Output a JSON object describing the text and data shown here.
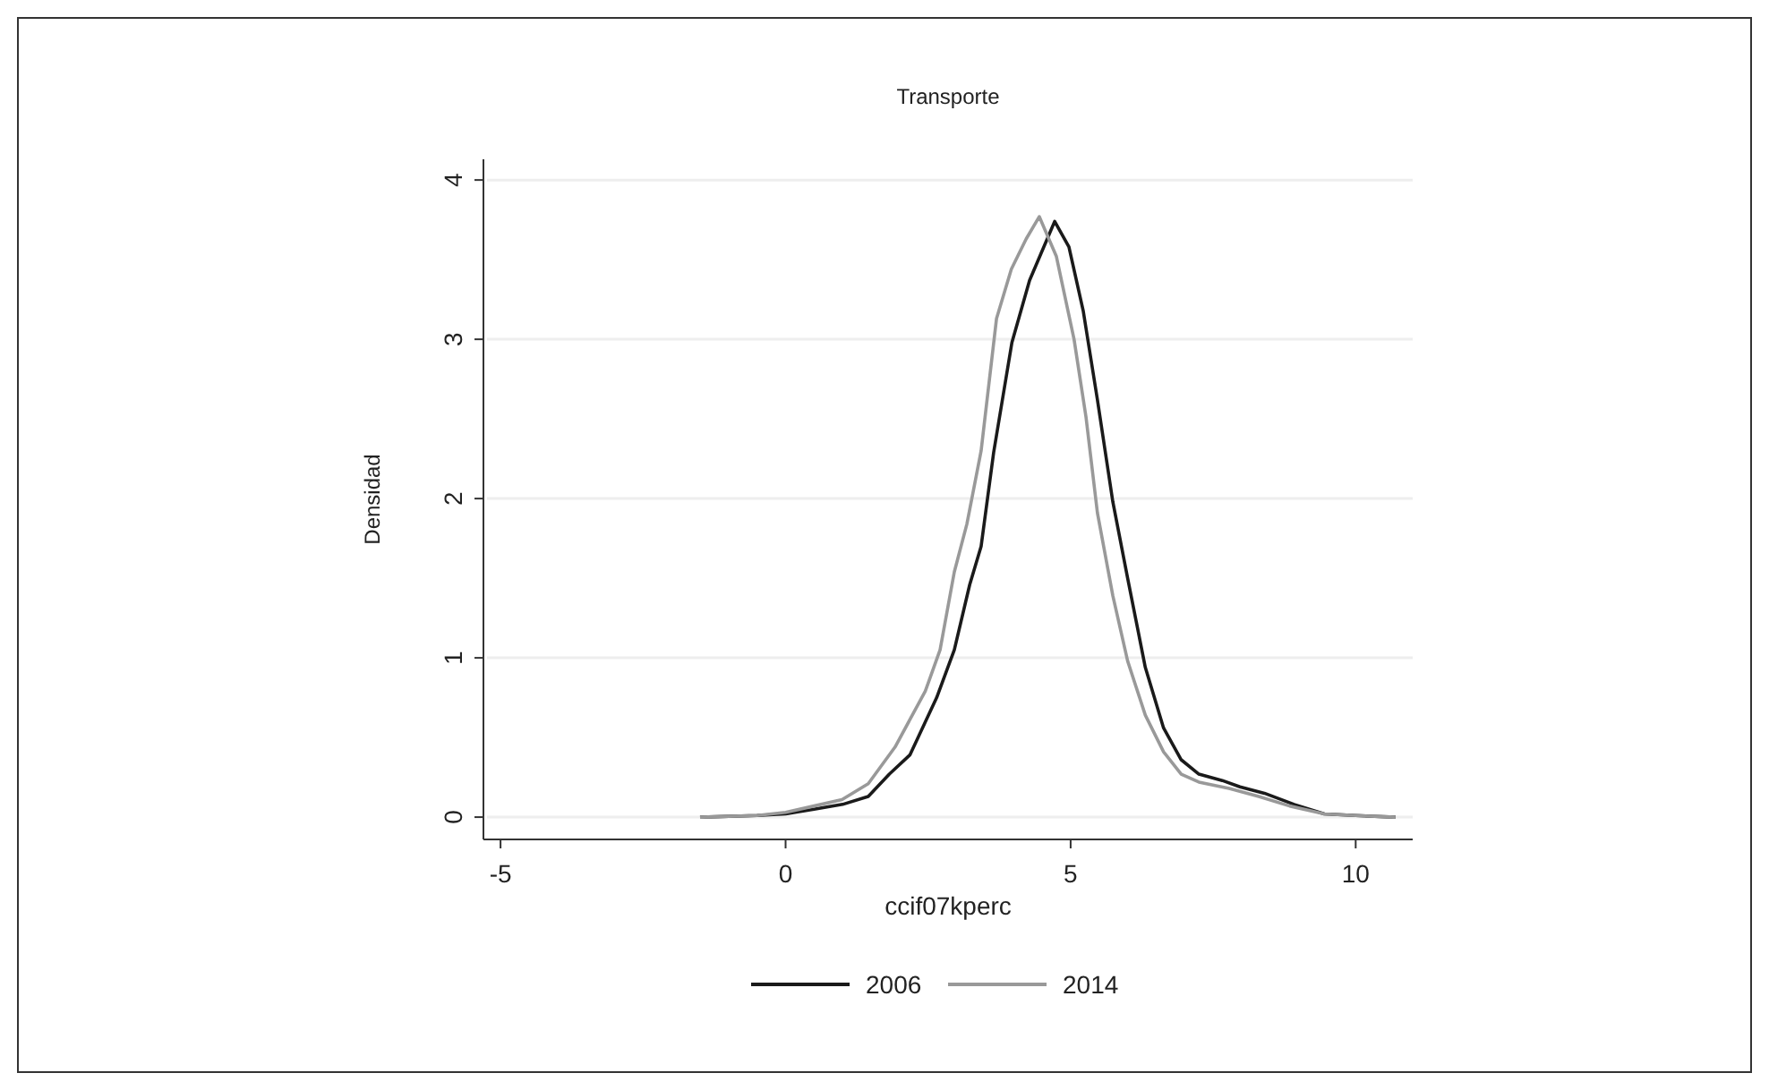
{
  "chart_data": {
    "type": "line",
    "title": "Transporte",
    "xlabel": "ccif07kperc",
    "ylabel": "Densidad",
    "xlim": [
      -5.3,
      11
    ],
    "xticks": [
      {
        "value": -5,
        "label": "-5"
      },
      0,
      5,
      10
    ],
    "ylim": [
      -0.14,
      4.13
    ],
    "yticks": [
      0,
      1,
      2,
      3,
      4
    ],
    "grid": "y",
    "legend": "bottom",
    "marker": "none",
    "line_style": "solid",
    "series": [
      {
        "name": "2006",
        "color": "#1a1a1a",
        "x": [
          -1.5,
          -0.5,
          0,
          0.5,
          1.0,
          1.45,
          1.82,
          2.18,
          2.65,
          2.96,
          3.23,
          3.43,
          3.65,
          3.97,
          4.28,
          4.72,
          4.97,
          5.22,
          5.47,
          5.74,
          6.0,
          6.31,
          6.63,
          6.94,
          7.25,
          7.66,
          7.97,
          8.4,
          8.92,
          9.45,
          10.0,
          10.7
        ],
        "values": [
          0,
          0.01,
          0.02,
          0.05,
          0.08,
          0.13,
          0.27,
          0.39,
          0.75,
          1.05,
          1.46,
          1.7,
          2.29,
          2.98,
          3.37,
          3.74,
          3.58,
          3.18,
          2.62,
          1.98,
          1.5,
          0.94,
          0.56,
          0.36,
          0.27,
          0.23,
          0.19,
          0.15,
          0.08,
          0.02,
          0.01,
          0
        ]
      },
      {
        "name": "2014",
        "color": "#999999",
        "x": [
          -1.5,
          -0.5,
          0,
          0.5,
          0.99,
          1.45,
          1.92,
          2.45,
          2.71,
          2.96,
          3.18,
          3.43,
          3.7,
          3.96,
          4.22,
          4.45,
          4.75,
          5.06,
          5.27,
          5.47,
          5.74,
          6.0,
          6.31,
          6.63,
          6.94,
          7.25,
          7.78,
          8.3,
          8.84,
          9.45,
          10.0,
          10.7
        ],
        "values": [
          0,
          0.01,
          0.03,
          0.07,
          0.11,
          0.21,
          0.44,
          0.79,
          1.05,
          1.54,
          1.84,
          2.3,
          3.13,
          3.44,
          3.63,
          3.77,
          3.52,
          3.0,
          2.51,
          1.91,
          1.39,
          0.98,
          0.64,
          0.41,
          0.27,
          0.22,
          0.18,
          0.13,
          0.07,
          0.02,
          0.01,
          0
        ]
      }
    ]
  }
}
